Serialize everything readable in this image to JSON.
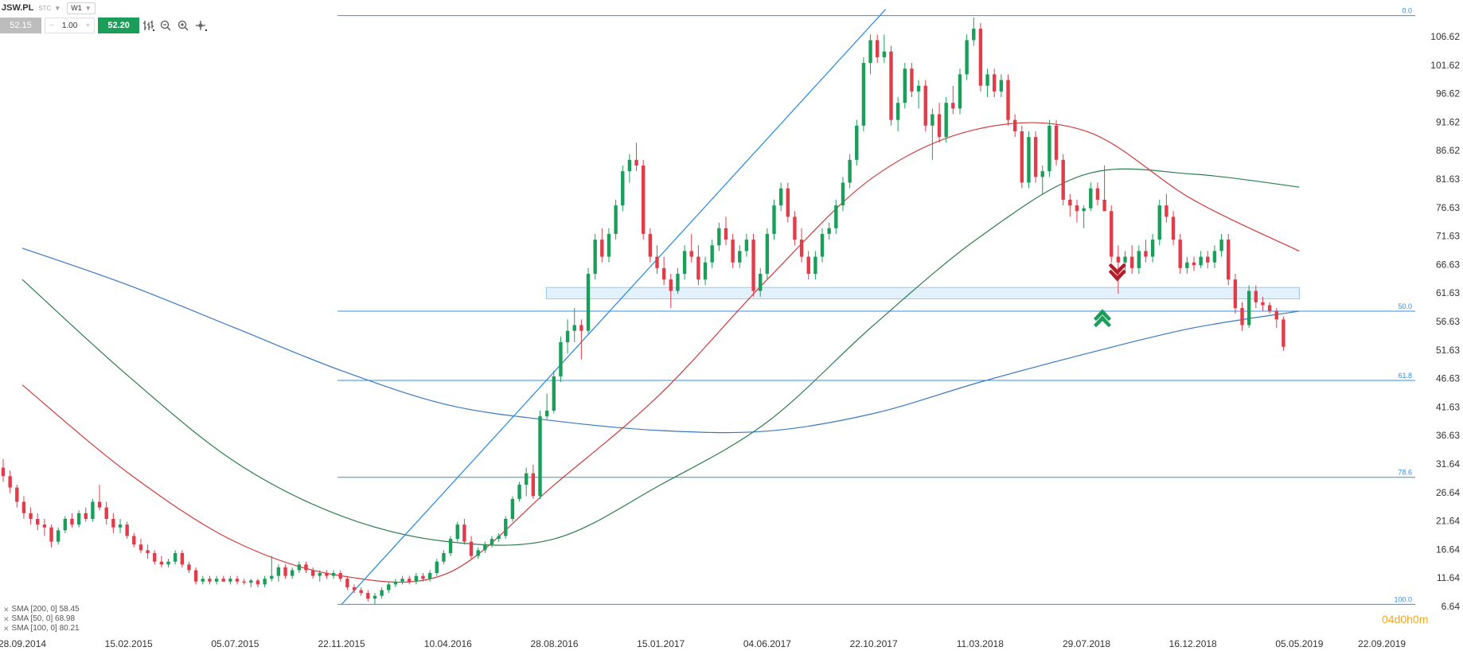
{
  "toolbar": {
    "symbol": "JSW.PL",
    "instrument_type": "STC",
    "timeframe": "W1",
    "bid": "52.15",
    "volume": "1.00",
    "ask": "52.20",
    "tools": [
      "bar-chart-icon",
      "zoom-out-icon",
      "zoom-in-icon",
      "crosshair-icon"
    ]
  },
  "indicators": [
    {
      "label": "SMA [200, 0] 58.45",
      "color": "#3a78c4"
    },
    {
      "label": "SMA [50, 0] 68.98",
      "color": "#d43a3a"
    },
    {
      "label": "SMA [100, 0] 80.21",
      "color": "#2e7d4f"
    }
  ],
  "watermark": "04d0h0m",
  "colors": {
    "up": "#1b9e5a",
    "down": "#e03c4a",
    "fib": "#2f8fe6",
    "axis_text": "#333333",
    "zone": "#d6ebfa"
  },
  "chart_data": {
    "type": "candlestick",
    "timeframe": "W1",
    "y_ticks": [
      "106.62",
      "101.62",
      "96.62",
      "91.62",
      "86.62",
      "81.63",
      "76.63",
      "71.63",
      "66.63",
      "61.63",
      "56.63",
      "51.63",
      "46.63",
      "41.63",
      "36.63",
      "31.64",
      "26.64",
      "21.64",
      "16.64",
      "11.64",
      "6.64"
    ],
    "x_ticks": [
      "28.09.2014",
      "15.02.2015",
      "05.07.2015",
      "22.11.2015",
      "10.04.2016",
      "28.08.2016",
      "15.01.2017",
      "04.06.2017",
      "22.10.2017",
      "11.03.2018",
      "29.07.2018",
      "16.12.2018",
      "05.05.2019",
      "22.09.2019"
    ],
    "ylim": [
      6.64,
      110.5
    ],
    "fibonacci": {
      "levels": [
        {
          "label": "0.0",
          "price": 110.3
        },
        {
          "label": "50.0",
          "price": 58.45
        },
        {
          "label": "61.8",
          "price": 46.3
        },
        {
          "label": "78.6",
          "price": 29.3
        },
        {
          "label": "100.0",
          "price": 7.0
        }
      ],
      "range_x": [
        "22.11.2015",
        "22.09.2019"
      ]
    },
    "support_zone": {
      "low": 60.6,
      "high": 62.6,
      "from": "28.08.2016",
      "to": "05.05.2019"
    },
    "trendline": {
      "from": {
        "date": "22.11.2015",
        "price": 7.0
      },
      "to": {
        "date": "22.10.2017",
        "price": 110.3
      }
    },
    "markers": [
      {
        "type": "arrow-up",
        "date": "29.07.2018",
        "price": 58.0,
        "color": "#1b9e5a"
      },
      {
        "type": "arrow-down",
        "date": "16.12.2018",
        "price": 64.5,
        "color": "#b21e2a"
      }
    ],
    "series": [
      {
        "name": "SMA [200, 0]",
        "color": "#3a78c4",
        "points": [
          [
            "28.09.2014",
            69.5
          ],
          [
            "15.02.2015",
            63.0
          ],
          [
            "05.07.2015",
            55.5
          ],
          [
            "22.11.2015",
            48.0
          ],
          [
            "10.04.2016",
            42.0
          ],
          [
            "28.08.2016",
            39.2
          ],
          [
            "15.01.2017",
            37.5
          ],
          [
            "04.06.2017",
            37.4
          ],
          [
            "22.10.2017",
            40.5
          ],
          [
            "11.03.2018",
            46.0
          ],
          [
            "29.07.2018",
            51.0
          ],
          [
            "16.12.2018",
            55.5
          ],
          [
            "05.05.2019",
            58.45
          ]
        ]
      },
      {
        "name": "SMA [100, 0]",
        "color": "#2e7d4f",
        "points": [
          [
            "28.09.2014",
            64.0
          ],
          [
            "15.02.2015",
            47.0
          ],
          [
            "05.07.2015",
            32.0
          ],
          [
            "22.11.2015",
            22.5
          ],
          [
            "10.04.2016",
            18.0
          ],
          [
            "28.08.2016",
            18.5
          ],
          [
            "15.01.2017",
            28.0
          ],
          [
            "04.06.2017",
            39.0
          ],
          [
            "22.10.2017",
            56.0
          ],
          [
            "11.03.2018",
            71.5
          ],
          [
            "29.07.2018",
            82.5
          ],
          [
            "16.12.2018",
            82.5
          ],
          [
            "05.05.2019",
            80.21
          ]
        ]
      },
      {
        "name": "SMA [50, 0]",
        "color": "#d43a3a",
        "points": [
          [
            "28.09.2014",
            45.5
          ],
          [
            "15.02.2015",
            30.0
          ],
          [
            "05.07.2015",
            18.0
          ],
          [
            "22.11.2015",
            12.0
          ],
          [
            "10.04.2016",
            12.5
          ],
          [
            "28.08.2016",
            28.0
          ],
          [
            "15.01.2017",
            44.0
          ],
          [
            "04.06.2017",
            64.0
          ],
          [
            "22.10.2017",
            82.0
          ],
          [
            "11.03.2018",
            90.5
          ],
          [
            "29.07.2018",
            90.0
          ],
          [
            "16.12.2018",
            78.0
          ],
          [
            "05.05.2019",
            68.98
          ]
        ]
      }
    ],
    "candles": [
      [
        31.0,
        32.5,
        28.5,
        29.5
      ],
      [
        29.5,
        30.5,
        26.5,
        27.5
      ],
      [
        27.5,
        28.0,
        24.0,
        25.0
      ],
      [
        25.0,
        26.0,
        22.0,
        23.0
      ],
      [
        23.0,
        24.0,
        21.0,
        22.0
      ],
      [
        22.0,
        23.0,
        20.0,
        21.0
      ],
      [
        21.0,
        22.0,
        19.0,
        20.5
      ],
      [
        20.5,
        21.0,
        17.0,
        18.0
      ],
      [
        18.0,
        20.5,
        17.5,
        20.0
      ],
      [
        20.0,
        22.5,
        19.5,
        22.0
      ],
      [
        22.0,
        23.0,
        20.5,
        21.0
      ],
      [
        21.0,
        23.5,
        20.5,
        23.0
      ],
      [
        23.0,
        24.0,
        21.5,
        22.0
      ],
      [
        22.0,
        25.5,
        21.5,
        25.0
      ],
      [
        25.0,
        28.0,
        23.5,
        24.0
      ],
      [
        24.0,
        25.0,
        21.0,
        22.0
      ],
      [
        22.0,
        23.0,
        19.5,
        20.5
      ],
      [
        20.5,
        22.0,
        19.5,
        21.0
      ],
      [
        21.0,
        21.5,
        18.5,
        19.0
      ],
      [
        19.0,
        19.5,
        17.0,
        17.5
      ],
      [
        17.5,
        18.5,
        16.0,
        16.5
      ],
      [
        16.5,
        17.5,
        15.0,
        16.0
      ],
      [
        16.0,
        16.5,
        14.0,
        14.5
      ],
      [
        14.5,
        15.5,
        13.5,
        14.0
      ],
      [
        14.0,
        15.0,
        13.5,
        14.5
      ],
      [
        14.5,
        16.5,
        14.0,
        16.0
      ],
      [
        16.0,
        16.5,
        13.5,
        14.0
      ],
      [
        14.0,
        14.5,
        12.5,
        13.0
      ],
      [
        13.0,
        13.5,
        10.5,
        11.0
      ],
      [
        11.0,
        12.0,
        10.5,
        11.5
      ],
      [
        11.5,
        12.0,
        10.5,
        11.0
      ],
      [
        11.0,
        12.0,
        10.5,
        11.5
      ],
      [
        11.5,
        12.0,
        11.0,
        11.0
      ],
      [
        11.0,
        12.0,
        10.5,
        11.5
      ],
      [
        11.5,
        12.0,
        10.5,
        11.0
      ],
      [
        11.0,
        11.5,
        10.5,
        10.8
      ],
      [
        10.8,
        11.5,
        10.0,
        11.2
      ],
      [
        11.2,
        11.5,
        10.0,
        10.5
      ],
      [
        10.5,
        12.0,
        10.0,
        11.5
      ],
      [
        11.5,
        15.5,
        11.0,
        12.0
      ],
      [
        12.0,
        14.0,
        11.0,
        13.5
      ],
      [
        13.5,
        14.0,
        11.5,
        12.0
      ],
      [
        12.0,
        13.5,
        11.5,
        13.0
      ],
      [
        13.0,
        14.5,
        12.5,
        14.0
      ],
      [
        14.0,
        14.5,
        12.5,
        13.0
      ],
      [
        13.0,
        13.5,
        11.5,
        12.0
      ],
      [
        12.0,
        13.0,
        11.0,
        12.5
      ],
      [
        12.5,
        13.0,
        11.5,
        12.0
      ],
      [
        12.0,
        13.0,
        11.5,
        12.5
      ],
      [
        12.5,
        13.0,
        11.0,
        11.5
      ],
      [
        11.5,
        12.0,
        9.5,
        10.0
      ],
      [
        10.0,
        10.5,
        9.0,
        9.5
      ],
      [
        9.5,
        10.0,
        8.5,
        9.0
      ],
      [
        9.0,
        9.5,
        7.5,
        8.0
      ],
      [
        8.0,
        9.0,
        7.0,
        8.5
      ],
      [
        8.5,
        10.0,
        8.0,
        9.5
      ],
      [
        9.5,
        11.0,
        9.0,
        10.5
      ],
      [
        10.5,
        11.5,
        10.0,
        11.0
      ],
      [
        11.0,
        12.0,
        10.5,
        11.5
      ],
      [
        11.5,
        12.0,
        10.5,
        11.0
      ],
      [
        11.0,
        12.5,
        10.5,
        12.0
      ],
      [
        12.0,
        12.5,
        11.0,
        11.5
      ],
      [
        11.5,
        13.0,
        11.0,
        12.5
      ],
      [
        12.5,
        15.0,
        12.0,
        14.5
      ],
      [
        14.5,
        16.5,
        14.0,
        16.0
      ],
      [
        16.0,
        19.0,
        15.5,
        18.5
      ],
      [
        18.5,
        21.5,
        18.0,
        21.0
      ],
      [
        21.0,
        22.0,
        17.5,
        18.0
      ],
      [
        18.0,
        19.0,
        15.0,
        15.5
      ],
      [
        15.5,
        17.0,
        15.0,
        16.5
      ],
      [
        16.5,
        18.0,
        16.0,
        17.5
      ],
      [
        17.5,
        19.0,
        17.0,
        18.5
      ],
      [
        18.5,
        19.5,
        18.0,
        19.0
      ],
      [
        19.0,
        22.5,
        18.5,
        22.0
      ],
      [
        22.0,
        26.0,
        21.5,
        25.5
      ],
      [
        25.5,
        28.5,
        25.0,
        28.0
      ],
      [
        28.0,
        31.0,
        26.0,
        30.0
      ],
      [
        30.0,
        31.5,
        25.5,
        26.0
      ],
      [
        26.0,
        41.0,
        25.5,
        40.0
      ],
      [
        40.0,
        44.0,
        39.5,
        41.0
      ],
      [
        41.0,
        48.0,
        40.5,
        47.0
      ],
      [
        47.0,
        54.0,
        46.0,
        53.0
      ],
      [
        53.0,
        57.0,
        51.0,
        55.0
      ],
      [
        55.0,
        59.0,
        53.0,
        56.0
      ],
      [
        56.0,
        57.0,
        50.0,
        55.0
      ],
      [
        55.0,
        66.0,
        54.5,
        65.0
      ],
      [
        65.0,
        72.0,
        64.0,
        71.0
      ],
      [
        71.0,
        73.0,
        67.0,
        68.0
      ],
      [
        68.0,
        73.0,
        67.0,
        72.0
      ],
      [
        72.0,
        78.0,
        71.0,
        77.0
      ],
      [
        77.0,
        84.0,
        76.0,
        83.0
      ],
      [
        83.0,
        86.0,
        81.0,
        85.0
      ],
      [
        85.0,
        88.0,
        83.0,
        84.0
      ],
      [
        84.0,
        85.0,
        71.0,
        72.0
      ],
      [
        72.0,
        73.0,
        67.0,
        68.0
      ],
      [
        68.0,
        70.0,
        65.0,
        66.0
      ],
      [
        66.0,
        68.0,
        63.0,
        64.0
      ],
      [
        64.0,
        65.0,
        59.0,
        62.0
      ],
      [
        62.0,
        66.0,
        61.5,
        65.0
      ],
      [
        65.0,
        70.0,
        64.0,
        69.0
      ],
      [
        69.0,
        72.0,
        67.0,
        68.0
      ],
      [
        68.0,
        70.0,
        63.0,
        64.0
      ],
      [
        64.0,
        68.0,
        63.0,
        67.0
      ],
      [
        67.0,
        71.0,
        66.0,
        70.0
      ],
      [
        70.0,
        74.0,
        69.0,
        73.0
      ],
      [
        73.0,
        75.0,
        70.0,
        71.0
      ],
      [
        71.0,
        72.0,
        66.0,
        67.0
      ],
      [
        67.0,
        70.0,
        66.0,
        69.0
      ],
      [
        69.0,
        72.0,
        68.0,
        71.0
      ],
      [
        71.0,
        72.0,
        61.0,
        62.0
      ],
      [
        62.0,
        66.0,
        61.0,
        65.0
      ],
      [
        65.0,
        73.0,
        64.0,
        72.0
      ],
      [
        72.0,
        78.0,
        71.0,
        77.0
      ],
      [
        77.0,
        81.0,
        76.0,
        80.0
      ],
      [
        80.0,
        81.0,
        74.0,
        75.0
      ],
      [
        75.0,
        76.0,
        70.0,
        71.0
      ],
      [
        71.0,
        73.0,
        67.0,
        68.0
      ],
      [
        68.0,
        69.0,
        64.0,
        65.0
      ],
      [
        65.0,
        69.0,
        64.0,
        68.0
      ],
      [
        68.0,
        73.0,
        67.0,
        72.0
      ],
      [
        72.0,
        74.0,
        71.0,
        73.0
      ],
      [
        73.0,
        78.0,
        72.0,
        77.0
      ],
      [
        77.0,
        82.0,
        76.0,
        81.0
      ],
      [
        81.0,
        86.0,
        80.0,
        85.0
      ],
      [
        85.0,
        92.0,
        84.0,
        91.0
      ],
      [
        91.0,
        103.0,
        90.0,
        102.0
      ],
      [
        102.0,
        107.0,
        100.0,
        106.0
      ],
      [
        106.0,
        107.0,
        102.0,
        103.0
      ],
      [
        103.0,
        107.0,
        102.0,
        104.0
      ],
      [
        104.0,
        105.0,
        91.0,
        92.0
      ],
      [
        92.0,
        96.0,
        90.0,
        95.0
      ],
      [
        95.0,
        102.0,
        94.0,
        101.0
      ],
      [
        101.0,
        102.0,
        96.0,
        97.0
      ],
      [
        97.0,
        99.0,
        94.0,
        98.0
      ],
      [
        98.0,
        99.0,
        90.0,
        91.0
      ],
      [
        91.0,
        94.0,
        85.0,
        93.0
      ],
      [
        93.0,
        95.0,
        88.0,
        89.0
      ],
      [
        89.0,
        96.0,
        88.0,
        95.0
      ],
      [
        95.0,
        98.0,
        93.0,
        94.0
      ],
      [
        94.0,
        101.0,
        93.0,
        100.0
      ],
      [
        100.0,
        107.0,
        99.0,
        106.0
      ],
      [
        106.0,
        110.0,
        105.0,
        108.0
      ],
      [
        108.0,
        109.0,
        97.0,
        98.0
      ],
      [
        98.0,
        101.0,
        96.0,
        100.0
      ],
      [
        100.0,
        101.0,
        96.0,
        97.0
      ],
      [
        97.0,
        100.0,
        96.0,
        99.0
      ],
      [
        99.0,
        100.0,
        91.0,
        92.0
      ],
      [
        92.0,
        93.0,
        89.0,
        90.0
      ],
      [
        90.0,
        91.0,
        80.0,
        81.0
      ],
      [
        81.0,
        90.0,
        80.0,
        89.0
      ],
      [
        89.0,
        90.0,
        81.0,
        82.0
      ],
      [
        82.0,
        84.0,
        79.0,
        83.0
      ],
      [
        83.0,
        92.0,
        82.0,
        91.0
      ],
      [
        91.0,
        92.0,
        84.0,
        85.0
      ],
      [
        85.0,
        86.0,
        77.0,
        78.0
      ],
      [
        78.0,
        79.0,
        75.0,
        77.0
      ],
      [
        77.0,
        78.0,
        74.0,
        76.0
      ],
      [
        76.0,
        77.0,
        73.0,
        76.5
      ],
      [
        76.5,
        81.0,
        76.0,
        80.0
      ],
      [
        80.0,
        81.0,
        77.0,
        78.0
      ],
      [
        78.0,
        84.0,
        77.0,
        76.0
      ],
      [
        76.0,
        77.0,
        67.0,
        68.0
      ],
      [
        68.0,
        70.0,
        61.5,
        67.0
      ],
      [
        67.0,
        69.0,
        65.0,
        68.0
      ],
      [
        68.0,
        70.0,
        65.0,
        66.0
      ],
      [
        66.0,
        70.0,
        65.0,
        69.0
      ],
      [
        69.0,
        71.0,
        67.0,
        68.0
      ],
      [
        68.0,
        72.0,
        67.0,
        71.0
      ],
      [
        71.0,
        78.0,
        70.0,
        77.0
      ],
      [
        77.0,
        79.0,
        74.0,
        75.0
      ],
      [
        75.0,
        76.0,
        70.0,
        71.0
      ],
      [
        71.0,
        72.0,
        65.0,
        66.0
      ],
      [
        66.0,
        68.0,
        65.0,
        67.0
      ],
      [
        67.0,
        68.0,
        65.5,
        66.5
      ],
      [
        66.5,
        69.0,
        66.0,
        68.0
      ],
      [
        68.0,
        69.0,
        66.0,
        67.0
      ],
      [
        67.0,
        70.0,
        66.0,
        69.0
      ],
      [
        69.0,
        72.0,
        68.0,
        71.0
      ],
      [
        71.0,
        72.0,
        63.0,
        64.0
      ],
      [
        64.0,
        65.0,
        58.0,
        59.0
      ],
      [
        59.0,
        60.0,
        55.0,
        56.0
      ],
      [
        56.0,
        63.0,
        55.5,
        62.0
      ],
      [
        62.0,
        63.0,
        59.0,
        60.0
      ],
      [
        60.0,
        61.0,
        58.5,
        59.5
      ],
      [
        59.5,
        60.0,
        58.0,
        58.5
      ],
      [
        58.5,
        59.0,
        55.5,
        57.0
      ],
      [
        57.0,
        57.5,
        51.5,
        52.2
      ]
    ]
  }
}
